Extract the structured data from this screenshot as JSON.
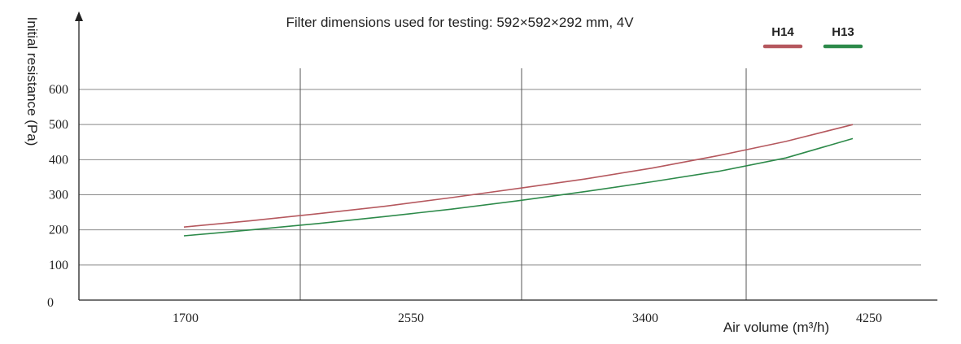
{
  "chart_data": {
    "type": "line",
    "title": "Filter dimensions used for testing: 592×592×292 mm, 4V",
    "xlabel": "Air volume (m³/h)",
    "ylabel": "Initial resistance (Pa)",
    "x_ticks": [
      "1700",
      "2550",
      "3400",
      "4250"
    ],
    "y_ticks": [
      "0",
      "100",
      "200",
      "300",
      "400",
      "500",
      "600"
    ],
    "xlim": [
      1700,
      4250
    ],
    "ylim": [
      0,
      600
    ],
    "x": [
      1700,
      1955,
      2210,
      2465,
      2720,
      2975,
      3230,
      3485,
      3740,
      3995,
      4250
    ],
    "series": [
      {
        "name": "H14",
        "color": "#b5585e",
        "values": [
          208,
          226,
          246,
          267,
          292,
          318,
          345,
          376,
          412,
          452,
          500
        ]
      },
      {
        "name": "H13",
        "color": "#2d8a4a",
        "values": [
          183,
          200,
          218,
          238,
          259,
          283,
          309,
          337,
          367,
          405,
          460
        ]
      }
    ],
    "grid": true,
    "legend_position": "top-right"
  }
}
